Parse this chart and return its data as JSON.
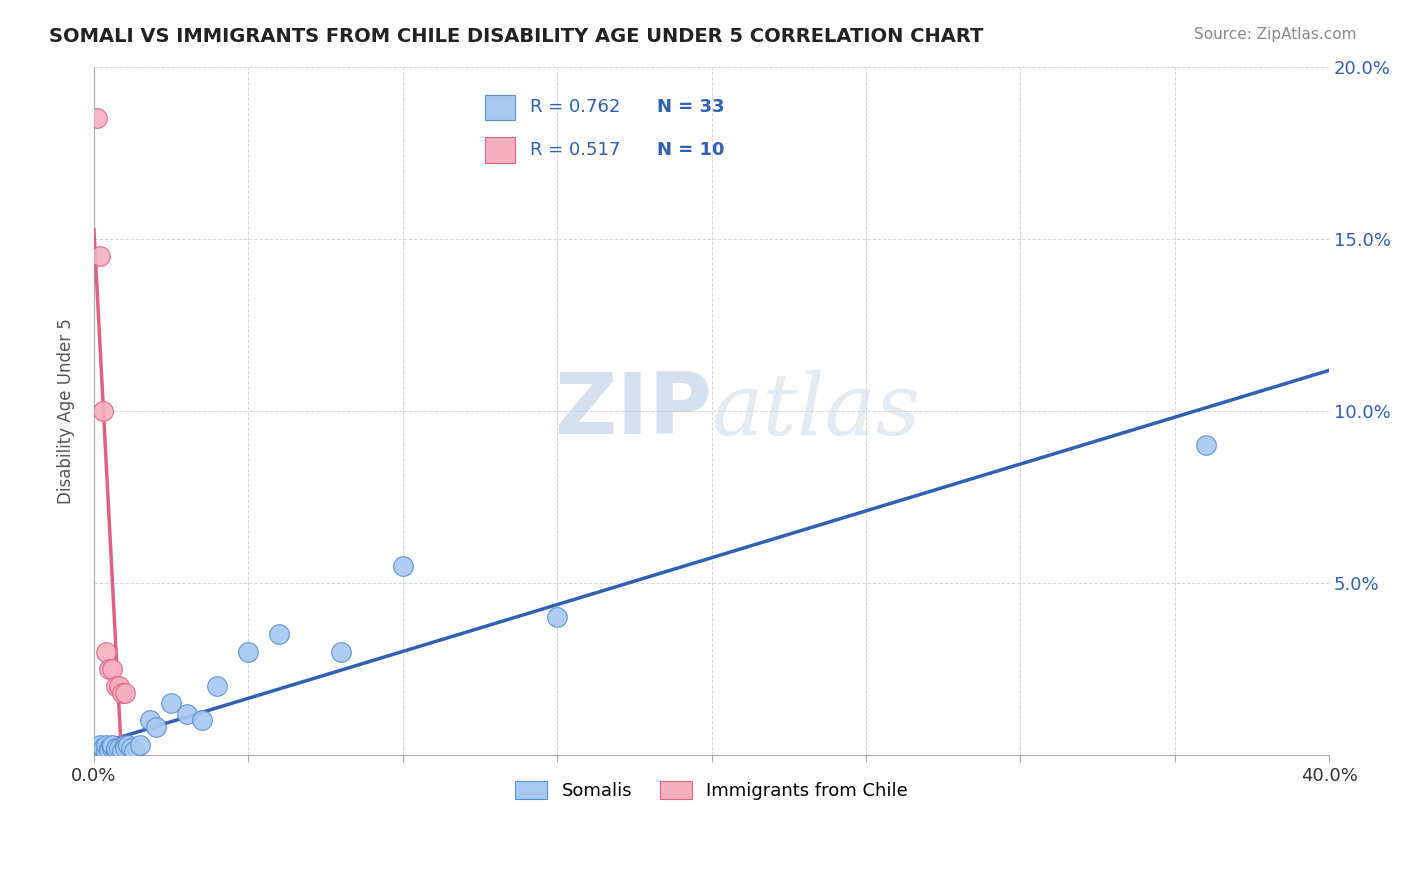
{
  "title": "SOMALI VS IMMIGRANTS FROM CHILE DISABILITY AGE UNDER 5 CORRELATION CHART",
  "source": "Source: ZipAtlas.com",
  "ylabel": "Disability Age Under 5",
  "xlabel": "",
  "watermark_zip": "ZIP",
  "watermark_atlas": "atlas",
  "xlim": [
    0.0,
    0.4
  ],
  "ylim": [
    0.0,
    0.2
  ],
  "xticks": [
    0.0,
    0.05,
    0.1,
    0.15,
    0.2,
    0.25,
    0.3,
    0.35,
    0.4
  ],
  "yticks": [
    0.0,
    0.05,
    0.1,
    0.15,
    0.2
  ],
  "xticklabels": [
    "0.0%",
    "",
    "",
    "",
    "",
    "",
    "",
    "",
    "40.0%"
  ],
  "yticklabels_right": [
    "",
    "5.0%",
    "10.0%",
    "15.0%",
    "20.0%"
  ],
  "somali_R": 0.762,
  "somali_N": 33,
  "chile_R": 0.517,
  "chile_N": 10,
  "somali_color": "#A8C8F0",
  "chile_color": "#F4B0C0",
  "somali_edge_color": "#5090D0",
  "chile_edge_color": "#E06080",
  "somali_line_color": "#3060B0",
  "chile_line_color": "#E06080",
  "background_color": "#FFFFFF",
  "grid_color": "#CCCCCC",
  "title_color": "#222222",
  "legend_text_color": "#3060B0",
  "somali_x": [
    0.001,
    0.002,
    0.002,
    0.003,
    0.003,
    0.004,
    0.004,
    0.005,
    0.005,
    0.006,
    0.006,
    0.007,
    0.007,
    0.008,
    0.009,
    0.01,
    0.01,
    0.011,
    0.012,
    0.013,
    0.015,
    0.018,
    0.02,
    0.025,
    0.03,
    0.035,
    0.04,
    0.05,
    0.06,
    0.08,
    0.1,
    0.15,
    0.36
  ],
  "somali_y": [
    0.001,
    0.002,
    0.003,
    0.001,
    0.002,
    0.001,
    0.003,
    0.002,
    0.001,
    0.002,
    0.003,
    0.001,
    0.002,
    0.002,
    0.001,
    0.003,
    0.002,
    0.003,
    0.002,
    0.001,
    0.003,
    0.01,
    0.008,
    0.015,
    0.012,
    0.01,
    0.02,
    0.03,
    0.035,
    0.03,
    0.055,
    0.04,
    0.09
  ],
  "chile_x": [
    0.001,
    0.002,
    0.003,
    0.004,
    0.005,
    0.006,
    0.007,
    0.008,
    0.009,
    0.01
  ],
  "chile_y": [
    0.185,
    0.145,
    0.1,
    0.03,
    0.025,
    0.025,
    0.02,
    0.02,
    0.018,
    0.018
  ]
}
